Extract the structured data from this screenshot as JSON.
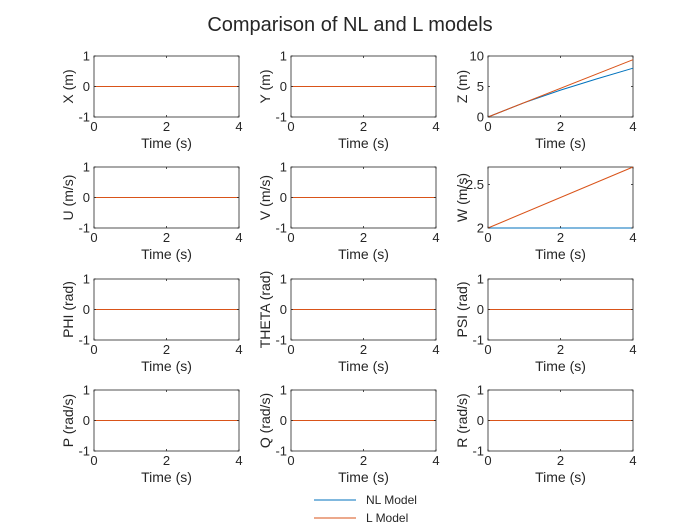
{
  "chart_data": {
    "title": "Comparison of NL and L models",
    "type": "line",
    "grid": false,
    "legend": {
      "placement": "bottom-center",
      "entries": [
        {
          "name": "NL Model",
          "color": "#0072BD"
        },
        {
          "name": "L Model",
          "color": "#D95319"
        }
      ]
    },
    "subplots": [
      {
        "ylabel": "X (m)",
        "xlabel": "Time (s)",
        "xlim": [
          0,
          4
        ],
        "ylim": [
          -1,
          1
        ],
        "xticks": [
          0,
          2,
          4
        ],
        "yticks": [
          -1,
          0,
          1
        ],
        "series": [
          {
            "name": "NL Model",
            "x": [
              0,
              4
            ],
            "y": [
              0,
              0
            ]
          },
          {
            "name": "L Model",
            "x": [
              0,
              4
            ],
            "y": [
              0,
              0
            ]
          }
        ]
      },
      {
        "ylabel": "Y (m)",
        "xlabel": "Time (s)",
        "xlim": [
          0,
          4
        ],
        "ylim": [
          -1,
          1
        ],
        "xticks": [
          0,
          2,
          4
        ],
        "yticks": [
          -1,
          0,
          1
        ],
        "series": [
          {
            "name": "NL Model",
            "x": [
              0,
              4
            ],
            "y": [
              0,
              0
            ]
          },
          {
            "name": "L Model",
            "x": [
              0,
              4
            ],
            "y": [
              0,
              0
            ]
          }
        ]
      },
      {
        "ylabel": "Z (m)",
        "xlabel": "Time (s)",
        "xlim": [
          0,
          4
        ],
        "ylim": [
          0,
          10
        ],
        "xticks": [
          0,
          2,
          4
        ],
        "yticks": [
          0,
          5,
          10
        ],
        "series": [
          {
            "name": "NL Model",
            "x": [
              0,
              1,
              2,
              3,
              4
            ],
            "y": [
              0,
              2.35,
              4.4,
              6.25,
              8.0
            ]
          },
          {
            "name": "L Model",
            "x": [
              0,
              4
            ],
            "y": [
              0,
              9.4
            ]
          }
        ]
      },
      {
        "ylabel": "U (m/s)",
        "xlabel": "Time (s)",
        "xlim": [
          0,
          4
        ],
        "ylim": [
          -1,
          1
        ],
        "xticks": [
          0,
          2,
          4
        ],
        "yticks": [
          -1,
          0,
          1
        ],
        "series": [
          {
            "name": "NL Model",
            "x": [
              0,
              4
            ],
            "y": [
              0,
              0
            ]
          },
          {
            "name": "L Model",
            "x": [
              0,
              4
            ],
            "y": [
              0,
              0
            ]
          }
        ]
      },
      {
        "ylabel": "V (m/s)",
        "xlabel": "Time (s)",
        "xlim": [
          0,
          4
        ],
        "ylim": [
          -1,
          1
        ],
        "xticks": [
          0,
          2,
          4
        ],
        "yticks": [
          -1,
          0,
          1
        ],
        "series": [
          {
            "name": "NL Model",
            "x": [
              0,
              4
            ],
            "y": [
              0,
              0
            ]
          },
          {
            "name": "L Model",
            "x": [
              0,
              4
            ],
            "y": [
              0,
              0
            ]
          }
        ]
      },
      {
        "ylabel": "W (m/s)",
        "xlabel": "Time (s)",
        "xlim": [
          0,
          4
        ],
        "ylim": [
          2,
          2.7
        ],
        "xticks": [
          0,
          2,
          4
        ],
        "yticks": [
          2,
          2.5
        ],
        "series": [
          {
            "name": "NL Model",
            "x": [
              0,
              4
            ],
            "y": [
              2,
              2
            ]
          },
          {
            "name": "L Model",
            "x": [
              0,
              4
            ],
            "y": [
              2,
              2.7
            ]
          }
        ]
      },
      {
        "ylabel": "PHI (rad)",
        "xlabel": "Time (s)",
        "xlim": [
          0,
          4
        ],
        "ylim": [
          -1,
          1
        ],
        "xticks": [
          0,
          2,
          4
        ],
        "yticks": [
          -1,
          0,
          1
        ],
        "series": [
          {
            "name": "NL Model",
            "x": [
              0,
              4
            ],
            "y": [
              0,
              0
            ]
          },
          {
            "name": "L Model",
            "x": [
              0,
              4
            ],
            "y": [
              0,
              0
            ]
          }
        ]
      },
      {
        "ylabel": "THETA (rad)",
        "xlabel": "Time (s)",
        "xlim": [
          0,
          4
        ],
        "ylim": [
          -1,
          1
        ],
        "xticks": [
          0,
          2,
          4
        ],
        "yticks": [
          -1,
          0,
          1
        ],
        "series": [
          {
            "name": "NL Model",
            "x": [
              0,
              4
            ],
            "y": [
              0,
              0
            ]
          },
          {
            "name": "L Model",
            "x": [
              0,
              4
            ],
            "y": [
              0,
              0
            ]
          }
        ]
      },
      {
        "ylabel": "PSI (rad)",
        "xlabel": "Time (s)",
        "xlim": [
          0,
          4
        ],
        "ylim": [
          -1,
          1
        ],
        "xticks": [
          0,
          2,
          4
        ],
        "yticks": [
          -1,
          0,
          1
        ],
        "series": [
          {
            "name": "NL Model",
            "x": [
              0,
              4
            ],
            "y": [
              0,
              0
            ]
          },
          {
            "name": "L Model",
            "x": [
              0,
              4
            ],
            "y": [
              0,
              0
            ]
          }
        ]
      },
      {
        "ylabel": "P (rad/s)",
        "xlabel": "Time (s)",
        "xlim": [
          0,
          4
        ],
        "ylim": [
          -1,
          1
        ],
        "xticks": [
          0,
          2,
          4
        ],
        "yticks": [
          -1,
          0,
          1
        ],
        "series": [
          {
            "name": "NL Model",
            "x": [
              0,
              4
            ],
            "y": [
              0,
              0
            ]
          },
          {
            "name": "L Model",
            "x": [
              0,
              4
            ],
            "y": [
              0,
              0
            ]
          }
        ]
      },
      {
        "ylabel": "Q (rad/s)",
        "xlabel": "Time (s)",
        "xlim": [
          0,
          4
        ],
        "ylim": [
          -1,
          1
        ],
        "xticks": [
          0,
          2,
          4
        ],
        "yticks": [
          -1,
          0,
          1
        ],
        "series": [
          {
            "name": "NL Model",
            "x": [
              0,
              4
            ],
            "y": [
              0,
              0
            ]
          },
          {
            "name": "L Model",
            "x": [
              0,
              4
            ],
            "y": [
              0,
              0
            ]
          }
        ]
      },
      {
        "ylabel": "R (rad/s)",
        "xlabel": "Time (s)",
        "xlim": [
          0,
          4
        ],
        "ylim": [
          -1,
          1
        ],
        "xticks": [
          0,
          2,
          4
        ],
        "yticks": [
          -1,
          0,
          1
        ],
        "series": [
          {
            "name": "NL Model",
            "x": [
              0,
              4
            ],
            "y": [
              0,
              0
            ]
          },
          {
            "name": "L Model",
            "x": [
              0,
              4
            ],
            "y": [
              0,
              0
            ]
          }
        ]
      }
    ]
  }
}
